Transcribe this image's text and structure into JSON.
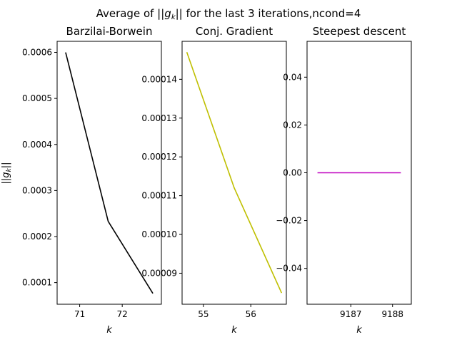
{
  "title": "Average of ||g_k|| for the last 3 iterations,ncond=4",
  "title_parts": {
    "prefix": "Average of ||",
    "g": "g",
    "k": "k",
    "suffix": "|| for the last 3 iterations,ncond=4"
  },
  "ylabel_parts": {
    "bars_left": "||",
    "g": "g",
    "k": "k",
    "bars_right": "||"
  },
  "chart_data": [
    {
      "type": "line",
      "title": "Barzilai-Borwein",
      "xlabel": "k",
      "ylabel": "||g_k||",
      "color": "#000000",
      "x": [
        70.67,
        71.67,
        72.72
      ],
      "y": [
        0.0006,
        0.000233,
        7.65e-05
      ],
      "xlim": [
        70.47,
        72.92
      ],
      "ylim": [
        5.3e-05,
        0.000624
      ],
      "xticks": [
        71,
        72
      ],
      "xtick_labels": [
        "71",
        "72"
      ],
      "yticks": [
        0.0001,
        0.0002,
        0.0003,
        0.0004,
        0.0005,
        0.0006
      ],
      "ytick_labels": [
        "0.0001",
        "0.0002",
        "0.0003",
        "0.0004",
        "0.0005",
        "0.0006"
      ],
      "grid": false
    },
    {
      "type": "line",
      "title": "Conj. Gradient",
      "xlabel": "k",
      "color": "#bfbf00",
      "x": [
        54.65,
        55.65,
        56.65
      ],
      "y": [
        0.000147,
        0.000112,
        8.49e-05
      ],
      "xlim": [
        54.55,
        56.75
      ],
      "ylim": [
        8.2e-05,
        0.0001498
      ],
      "xticks": [
        55,
        56
      ],
      "xtick_labels": [
        "55",
        "56"
      ],
      "yticks": [
        9e-05,
        0.0001,
        0.00011,
        0.00012,
        0.00013,
        0.00014
      ],
      "ytick_labels": [
        "0.00009",
        "0.00010",
        "0.00011",
        "0.00012",
        "0.00013",
        "0.00014"
      ],
      "grid": false
    },
    {
      "type": "line",
      "title": "Steepest descent",
      "xlabel": "k",
      "color": "#bf00bf",
      "x": [
        9186.2,
        9188.2
      ],
      "y": [
        0.0,
        0.0
      ],
      "xlim": [
        9185.95,
        9188.45
      ],
      "ylim": [
        -0.055,
        0.055
      ],
      "xticks": [
        9187,
        9188
      ],
      "xtick_labels": [
        "9187",
        "9188"
      ],
      "yticks": [
        -0.04,
        -0.02,
        0.0,
        0.02,
        0.04
      ],
      "ytick_labels": [
        "−0.04",
        "−0.02",
        "0.00",
        "0.02",
        "0.04"
      ],
      "grid": false
    }
  ]
}
